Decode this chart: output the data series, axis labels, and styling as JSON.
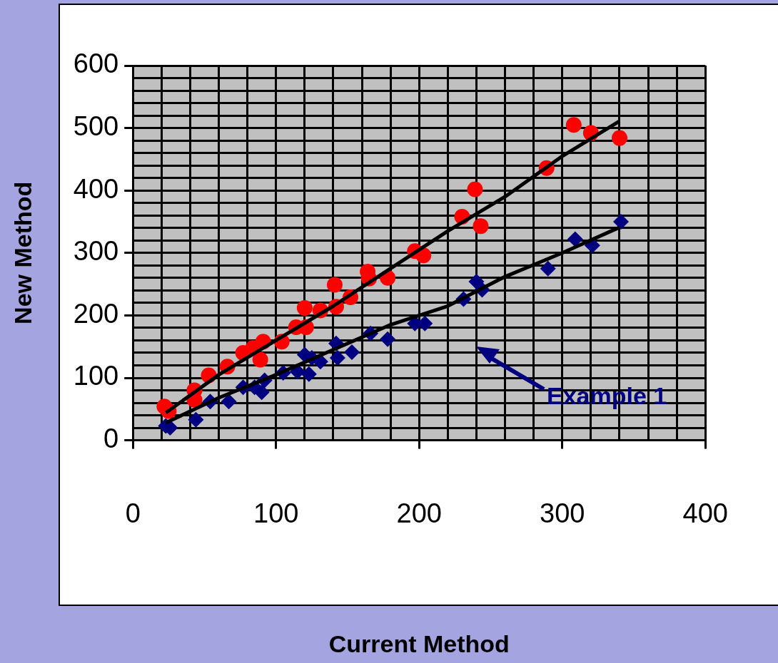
{
  "chart_data": {
    "type": "scatter",
    "xlabel": "Current Method",
    "ylabel": "New Method",
    "xlim": [
      0,
      400
    ],
    "ylim": [
      0,
      600
    ],
    "xticks": [
      0,
      {
        "value": 20,
        "label": null
      },
      {
        "value": 40,
        "label": null
      },
      {
        "value": 60,
        "label": null
      },
      {
        "value": 80,
        "label": null
      },
      100,
      {
        "value": 120,
        "label": null
      },
      {
        "value": 140,
        "label": null
      },
      {
        "value": 160,
        "label": null
      },
      {
        "value": 180,
        "label": null
      },
      200,
      {
        "value": 220,
        "label": null
      },
      {
        "value": 240,
        "label": null
      },
      {
        "value": 260,
        "label": null
      },
      {
        "value": 280,
        "label": null
      },
      300,
      {
        "value": 320,
        "label": null
      },
      {
        "value": 340,
        "label": null
      },
      {
        "value": 360,
        "label": null
      },
      {
        "value": 380,
        "label": null
      },
      400
    ],
    "yticks": [
      0,
      {
        "value": 20,
        "label": null
      },
      {
        "value": 40,
        "label": null
      },
      {
        "value": 60,
        "label": null
      },
      {
        "value": 80,
        "label": null
      },
      100,
      {
        "value": 120,
        "label": null
      },
      {
        "value": 140,
        "label": null
      },
      {
        "value": 160,
        "label": null
      },
      {
        "value": 180,
        "label": null
      },
      200,
      {
        "value": 220,
        "label": null
      },
      {
        "value": 240,
        "label": null
      },
      {
        "value": 260,
        "label": null
      },
      {
        "value": 280,
        "label": null
      },
      300,
      {
        "value": 320,
        "label": null
      },
      {
        "value": 340,
        "label": null
      },
      {
        "value": 360,
        "label": null
      },
      {
        "value": 380,
        "label": null
      },
      400,
      {
        "value": 420,
        "label": null
      },
      {
        "value": 440,
        "label": null
      },
      {
        "value": 460,
        "label": null
      },
      {
        "value": 480,
        "label": null
      },
      500,
      {
        "value": 520,
        "label": null
      },
      {
        "value": 540,
        "label": null
      },
      {
        "value": 560,
        "label": null
      },
      {
        "value": 580,
        "label": null
      },
      600
    ],
    "grid": true,
    "legend": false,
    "series": [
      {
        "color": "#ff0000",
        "marker": "circle",
        "x": [
          22,
          25,
          43,
          43,
          53,
          66,
          77,
          84,
          89,
          91,
          104,
          114,
          120,
          121,
          131,
          141,
          142,
          152,
          164,
          165,
          178,
          197,
          203,
          230,
          239,
          243,
          289,
          308,
          320,
          340
        ],
        "values": [
          54,
          47,
          80,
          65,
          104,
          118,
          140,
          148,
          129,
          158,
          158,
          181,
          212,
          181,
          208,
          249,
          214,
          229,
          270,
          259,
          260,
          303,
          296,
          358,
          402,
          343,
          436,
          505,
          492,
          484
        ]
      },
      {
        "color": "#000080",
        "marker": "diamond",
        "x": [
          23,
          26,
          44,
          54,
          67,
          77,
          85,
          90,
          92,
          105,
          115,
          120,
          123,
          125,
          131,
          142,
          143,
          153,
          166,
          178,
          197,
          204,
          231,
          240,
          244,
          290,
          309,
          321,
          341
        ],
        "values": [
          23,
          20,
          33,
          62,
          62,
          85,
          85,
          77,
          96,
          108,
          110,
          137,
          106,
          132,
          126,
          155,
          132,
          141,
          171,
          162,
          187,
          187,
          226,
          254,
          241,
          275,
          322,
          312,
          350
        ]
      },
      {
        "type": "line",
        "color": "#000000",
        "marker": "none",
        "x": [
          23,
          60,
          100,
          140,
          180,
          220,
          260,
          300,
          340
        ],
        "values": [
          44,
          105,
          160,
          215,
          275,
          335,
          390,
          455,
          511
        ]
      },
      {
        "type": "line",
        "color": "#000000",
        "marker": "none",
        "x": [
          23,
          60,
          100,
          140,
          180,
          220,
          260,
          300,
          340
        ],
        "values": [
          28,
          68,
          105,
          145,
          185,
          215,
          262,
          300,
          341
        ]
      }
    ],
    "annotations": [
      "Example 1"
    ]
  }
}
